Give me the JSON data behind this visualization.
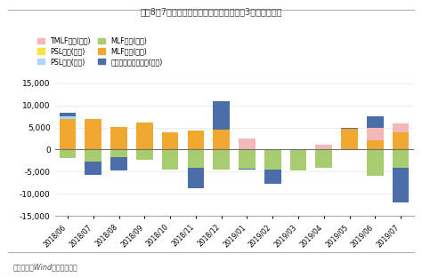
{
  "title": "图表8：7月央行公开市场操作终结此前连续3个月的净投放",
  "source": "资料来源：Wind，恒大研究院",
  "categories": [
    "2018/06",
    "2018/07",
    "2018/08",
    "2018/09",
    "2018/10",
    "2018/11",
    "2018/12",
    "2019/01",
    "2019/02",
    "2019/03",
    "2019/04",
    "2019/05",
    "2019/06",
    "2019/07"
  ],
  "TMLF": [
    0,
    0,
    0,
    0,
    0,
    0,
    0,
    2575,
    0,
    0,
    1000,
    0,
    2977,
    2000
  ],
  "PSL_issue": [
    500,
    0,
    0,
    0,
    0,
    0,
    0,
    0,
    0,
    0,
    0,
    0,
    0,
    0
  ],
  "MLF_issue": [
    7000,
    6980,
    5020,
    6040,
    3940,
    4310,
    4590,
    0,
    0,
    0,
    0,
    4660,
    2000,
    4000
  ],
  "PSL_mature": [
    0,
    0,
    0,
    0,
    0,
    0,
    0,
    0,
    0,
    0,
    0,
    0,
    0,
    0
  ],
  "MLF_mature": [
    -2000,
    -2680,
    -1615,
    -2335,
    -4595,
    -4095,
    -4590,
    -4400,
    -4580,
    -4635,
    -4100,
    0,
    -6000,
    -4035
  ],
  "net": [
    8400,
    -5800,
    -4700,
    -1000,
    -800,
    -8800,
    11000,
    -4500,
    -7800,
    -4500,
    500,
    5000,
    7500,
    -12000
  ],
  "colors": {
    "TMLF": "#f4b8b8",
    "PSL_issue": "#aed6f1",
    "MLF_issue": "#f0a830",
    "PSL_mature": "#f5e642",
    "MLF_mature": "#a8cc70",
    "net": "#4a6fa8"
  },
  "ylim": [
    -15000,
    15000
  ],
  "yticks": [
    -15000,
    -10000,
    -5000,
    0,
    5000,
    10000,
    15000
  ],
  "background": "#ffffff",
  "title_color": "#404040",
  "source_color": "#505050",
  "border_color": "#c0c0c0"
}
